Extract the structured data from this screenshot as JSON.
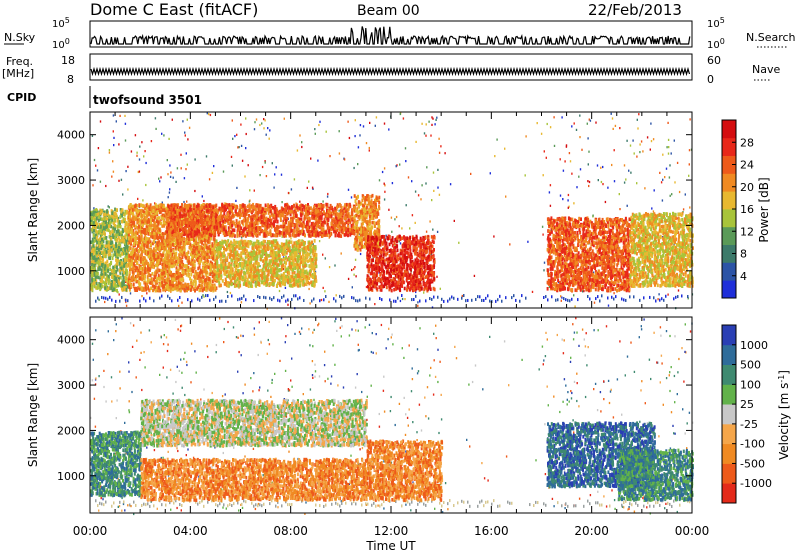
{
  "header": {
    "station": "Dome C East (fitACF)",
    "beam": "Beam 00",
    "date": "22/Feb/2013"
  },
  "noise_panel": {
    "left_label": "N.Sky",
    "left_ticks": [
      "10^5",
      "10^0"
    ],
    "right_ticks": [
      "10^5",
      "10^0"
    ],
    "right_label": "N.Search"
  },
  "freq_panel": {
    "left_label_top": "Freq.",
    "left_label_unit": "[MHz]",
    "left_ticks": [
      "18",
      "8"
    ],
    "right_ticks": [
      "60",
      "0"
    ],
    "right_label": "Nave"
  },
  "cpid_panel": {
    "label": "CPID",
    "program": "twofsound 3501"
  },
  "chart_data": [
    {
      "type": "heatmap",
      "parameter": "power",
      "ylabel": "Slant Range [km]",
      "xlabel": "Time UT",
      "xlim": [
        0,
        24
      ],
      "ylim": [
        180,
        4500
      ],
      "x_ticks": [
        "00:00",
        "04:00",
        "08:00",
        "12:00",
        "16:00",
        "20:00",
        "00:00"
      ],
      "y_ticks": [
        1000,
        2000,
        3000,
        4000
      ],
      "colorbar": {
        "label": "Power [dB]",
        "ticks": [
          4,
          8,
          12,
          16,
          20,
          24,
          28
        ],
        "range": [
          0,
          32
        ],
        "colors": [
          "#1f2fd9",
          "#2c54a6",
          "#3c7a6a",
          "#5a9a58",
          "#a8c43a",
          "#e8b830",
          "#f08a22",
          "#ee5a1a",
          "#e8281a",
          "#d40d10"
        ]
      },
      "echo_regions": [
        {
          "t_start": 0.0,
          "t_end": 1.5,
          "r_min": 600,
          "r_max": 2400,
          "power": 14
        },
        {
          "t_start": 1.5,
          "t_end": 5.0,
          "r_min": 600,
          "r_max": 2500,
          "power": 20
        },
        {
          "t_start": 3.0,
          "t_end": 10.5,
          "r_min": 1800,
          "r_max": 2500,
          "power": 24
        },
        {
          "t_start": 5.0,
          "t_end": 9.0,
          "r_min": 700,
          "r_max": 1700,
          "power": 18
        },
        {
          "t_start": 10.5,
          "t_end": 11.5,
          "r_min": 1500,
          "r_max": 2700,
          "power": 22
        },
        {
          "t_start": 11.0,
          "t_end": 13.7,
          "r_min": 600,
          "r_max": 1800,
          "power": 28
        },
        {
          "t_start": 18.2,
          "t_end": 21.5,
          "r_min": 600,
          "r_max": 2200,
          "power": 26
        },
        {
          "t_start": 21.5,
          "t_end": 24.0,
          "r_min": 700,
          "r_max": 2300,
          "power": 16
        }
      ]
    },
    {
      "type": "heatmap",
      "parameter": "velocity",
      "ylabel": "Slant Range [km]",
      "xlabel": "Time UT",
      "xlim": [
        0,
        24
      ],
      "ylim": [
        180,
        4500
      ],
      "x_ticks": [
        "00:00",
        "04:00",
        "08:00",
        "12:00",
        "16:00",
        "20:00",
        "00:00"
      ],
      "y_ticks": [
        1000,
        2000,
        3000,
        4000
      ],
      "colorbar": {
        "label": "Velocity [m s^-1]",
        "ticks": [
          "1000",
          "500",
          "100",
          "25",
          "-25",
          "-100",
          "-500",
          "-1000"
        ],
        "colors": [
          "#2a3fb4",
          "#2f6c9a",
          "#3f8a70",
          "#62b24a",
          "#c8c8c8",
          "#f5a64a",
          "#f08a22",
          "#ee5a1a",
          "#e42a1a"
        ]
      },
      "echo_regions": [
        {
          "t_start": 0.0,
          "t_end": 2.0,
          "r_min": 600,
          "r_max": 2000,
          "velocity": 100
        },
        {
          "t_start": 2.0,
          "t_end": 11.0,
          "r_min": 1700,
          "r_max": 2700,
          "velocity": 0
        },
        {
          "t_start": 2.0,
          "t_end": 11.0,
          "r_min": 500,
          "r_max": 1400,
          "velocity": -300
        },
        {
          "t_start": 11.0,
          "t_end": 14.0,
          "r_min": 500,
          "r_max": 1800,
          "velocity": -300
        },
        {
          "t_start": 18.2,
          "t_end": 22.5,
          "r_min": 800,
          "r_max": 2200,
          "velocity": 700
        },
        {
          "t_start": 21.0,
          "t_end": 24.0,
          "r_min": 500,
          "r_max": 1600,
          "velocity": 150
        }
      ]
    }
  ],
  "footer": {
    "x_ticks": [
      "00:00",
      "04:00",
      "08:00",
      "12:00",
      "16:00",
      "20:00",
      "00:00"
    ],
    "xlabel": "Time UT"
  }
}
